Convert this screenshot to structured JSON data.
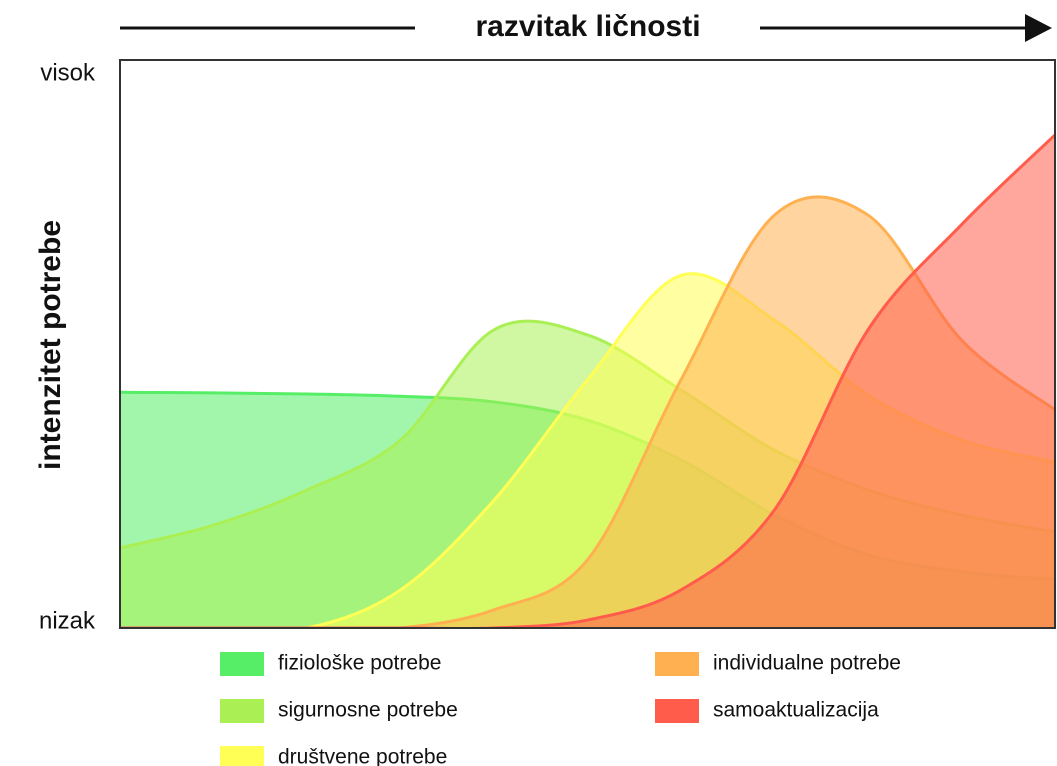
{
  "chart_data": {
    "type": "area",
    "title": "razvitak ličnosti",
    "y_label": "intenzitet potrebe",
    "x": [
      0,
      1,
      2,
      3,
      4,
      5,
      6,
      7,
      8,
      9,
      10
    ],
    "xlim": [
      0,
      10
    ],
    "ylim": [
      0,
      100
    ],
    "yticks": [
      {
        "value": 100,
        "label": "visok"
      },
      {
        "value": 0,
        "label": "nizak"
      }
    ],
    "series": [
      {
        "name": "fiziološke potrebe",
        "color": "#55ee66",
        "values": [
          41.5,
          41.4,
          41.2,
          40.8,
          39.8,
          36.6,
          29.6,
          19.9,
          12.9,
          9.9,
          8.5
        ]
      },
      {
        "name": "sigurnosne potrebe",
        "color": "#aaf055",
        "values": [
          14.1,
          18.1,
          24.3,
          33.1,
          52.5,
          51.6,
          41.9,
          31.3,
          24.3,
          19.9,
          16.9
        ]
      },
      {
        "name": "društvene potrebe",
        "color": "#ffff55",
        "values": [
          0,
          0,
          0,
          6.7,
          22.5,
          43.7,
          62.1,
          54.2,
          41.0,
          33.1,
          29.2
        ]
      },
      {
        "name": "individualne potrebe",
        "color": "#ffb050",
        "values": [
          0,
          0,
          0,
          0,
          3.2,
          12,
          43.7,
          72.7,
          72.7,
          50.7,
          38.4
        ]
      },
      {
        "name": "samoaktualizacija",
        "color": "#ff5c4c",
        "values": [
          0,
          0,
          0,
          0,
          0,
          1.4,
          6.7,
          20.8,
          52.5,
          71,
          86.8
        ]
      }
    ]
  }
}
